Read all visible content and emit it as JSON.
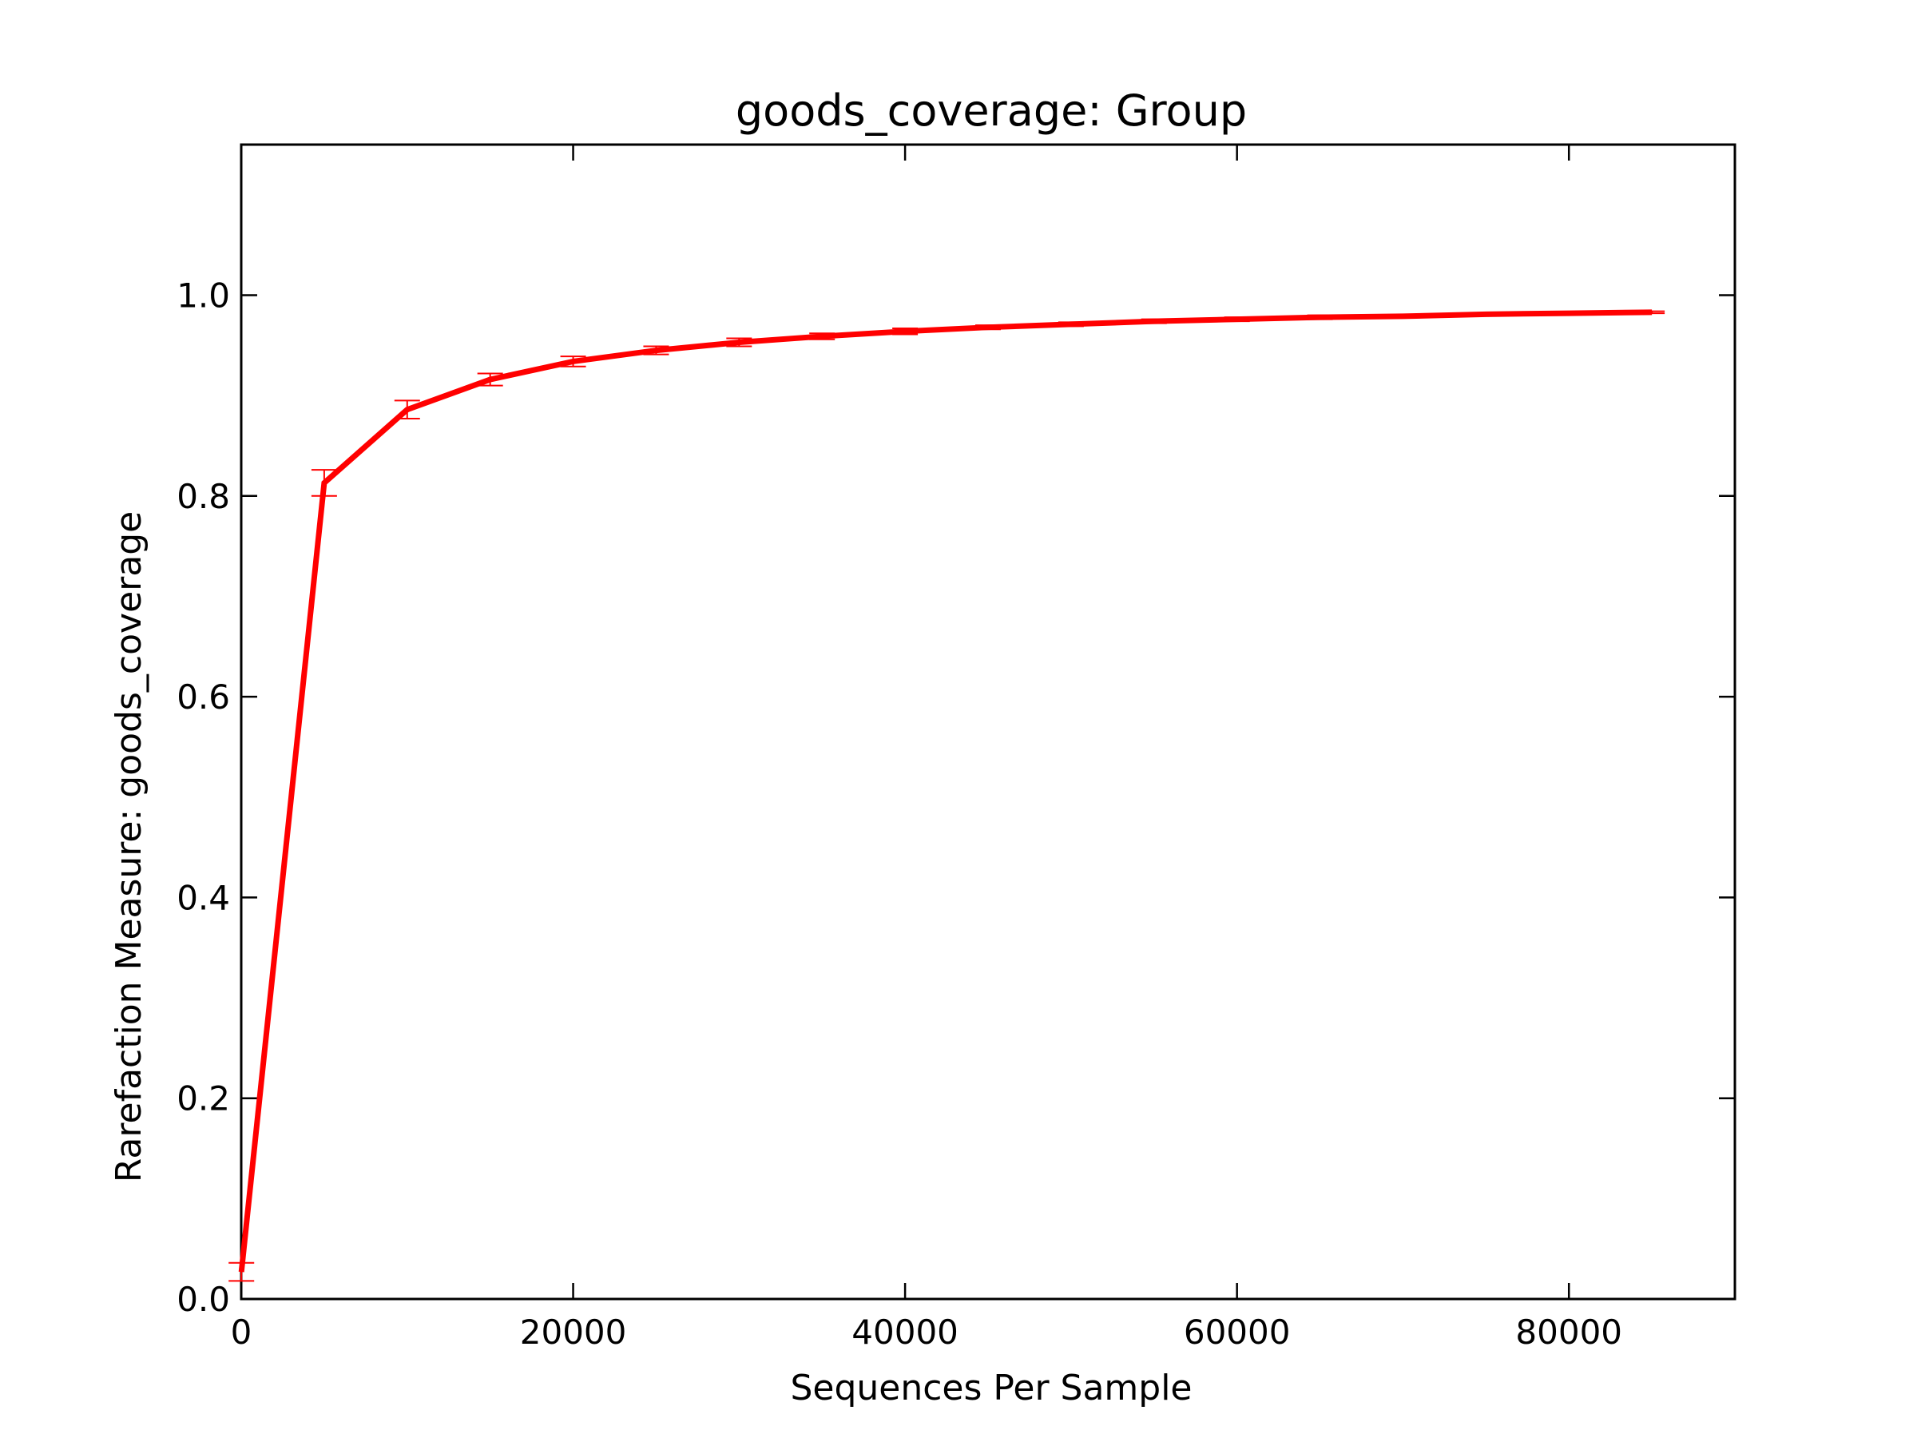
{
  "chart_data": {
    "type": "line",
    "title": "goods_coverage: Group",
    "xlabel": "Sequences Per Sample",
    "ylabel": "Rarefaction Measure: goods_coverage",
    "xlim": [
      0,
      90000
    ],
    "ylim": [
      0,
      1.15
    ],
    "x_ticks": [
      0,
      20000,
      40000,
      60000,
      80000
    ],
    "x_tick_labels": [
      "0",
      "20000",
      "40000",
      "60000",
      "80000"
    ],
    "y_ticks": [
      0.0,
      0.2,
      0.4,
      0.6,
      0.8,
      1.0
    ],
    "y_tick_labels": [
      "0.0",
      "0.2",
      "0.4",
      "0.6",
      "0.8",
      "1.0"
    ],
    "grid": false,
    "legend": "none",
    "series": [
      {
        "color": "#ff0000",
        "x": [
          10,
          5000,
          10000,
          15000,
          20000,
          25000,
          30000,
          35000,
          40000,
          45000,
          50000,
          55000,
          60000,
          65000,
          70000,
          75000,
          80000,
          85000
        ],
        "y": [
          0.027,
          0.813,
          0.886,
          0.916,
          0.934,
          0.945,
          0.953,
          0.959,
          0.964,
          0.968,
          0.971,
          0.974,
          0.976,
          0.978,
          0.979,
          0.981,
          0.982,
          0.983
        ],
        "err": [
          0.009,
          0.013,
          0.009,
          0.006,
          0.005,
          0.004,
          0.004,
          0.003,
          0.003,
          0.002,
          0.002,
          0.002,
          0.002,
          0.002,
          0.001,
          0.001,
          0.001,
          0.001
        ]
      }
    ]
  }
}
